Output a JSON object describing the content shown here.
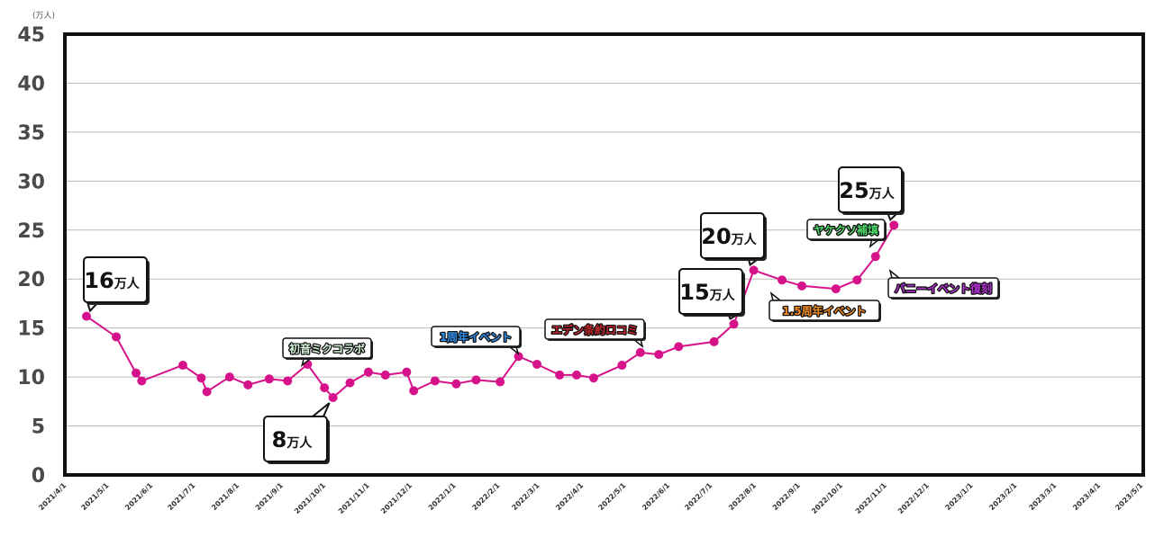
{
  "chart_data": {
    "type": "line",
    "unit_label": "(万人)",
    "ylim": [
      0,
      45
    ],
    "y_ticks": [
      "0",
      "5",
      "10",
      "15",
      "20",
      "25",
      "30",
      "35",
      "40",
      "45"
    ],
    "x_ticks": [
      "2021/4/1",
      "2021/5/1",
      "2021/6/1",
      "2021/7/1",
      "2021/8/1",
      "2021/9/1",
      "2021/10/1",
      "2021/11/1",
      "2021/12/1",
      "2022/1/1",
      "2022/2/1",
      "2022/3/1",
      "2022/4/1",
      "2022/5/1",
      "2022/6/1",
      "2022/7/1",
      "2022/8/1",
      "2022/9/1",
      "2022/10/1",
      "2022/11/1",
      "2022/12/1",
      "2023/1/1",
      "2023/2/1",
      "2023/3/1",
      "2023/4/1",
      "2023/5/1"
    ],
    "grid": true,
    "line_color": "#d6128a",
    "series": [
      {
        "points": [
          [
            "2021-04-15",
            16.2
          ],
          [
            "2021-05-06",
            14.1
          ],
          [
            "2021-05-20",
            10.4
          ],
          [
            "2021-05-24",
            9.6
          ],
          [
            "2021-06-22",
            11.2
          ],
          [
            "2021-07-05",
            9.9
          ],
          [
            "2021-07-09",
            8.5
          ],
          [
            "2021-07-25",
            10.0
          ],
          [
            "2021-08-07",
            9.2
          ],
          [
            "2021-08-22",
            9.8
          ],
          [
            "2021-09-04",
            9.6
          ],
          [
            "2021-09-18",
            11.3
          ],
          [
            "2021-09-30",
            8.9
          ],
          [
            "2021-10-06",
            7.9
          ],
          [
            "2021-10-18",
            9.4
          ],
          [
            "2021-10-31",
            10.5
          ],
          [
            "2021-11-12",
            10.2
          ],
          [
            "2021-11-27",
            10.5
          ],
          [
            "2021-12-02",
            8.6
          ],
          [
            "2021-12-17",
            9.6
          ],
          [
            "2022-01-01",
            9.3
          ],
          [
            "2022-01-15",
            9.7
          ],
          [
            "2022-02-01",
            9.5
          ],
          [
            "2022-02-14",
            12.1
          ],
          [
            "2022-02-27",
            11.3
          ],
          [
            "2022-03-15",
            10.2
          ],
          [
            "2022-03-27",
            10.2
          ],
          [
            "2022-04-08",
            9.9
          ],
          [
            "2022-04-28",
            11.2
          ],
          [
            "2022-05-11",
            12.5
          ],
          [
            "2022-05-24",
            12.3
          ],
          [
            "2022-06-07",
            13.1
          ],
          [
            "2022-07-02",
            13.6
          ],
          [
            "2022-07-16",
            15.4
          ],
          [
            "2022-07-30",
            20.9
          ],
          [
            "2022-08-19",
            19.9
          ],
          [
            "2022-09-02",
            19.3
          ],
          [
            "2022-09-26",
            19.0
          ],
          [
            "2022-10-11",
            19.9
          ],
          [
            "2022-10-24",
            22.3
          ],
          [
            "2022-11-06",
            25.5
          ]
        ]
      }
    ],
    "annotations": [
      {
        "text": "16",
        "suffix": "万人",
        "date": "2021-04-15",
        "kind": "big"
      },
      {
        "text": "8",
        "suffix": "万人",
        "date": "2021-10-06",
        "kind": "big",
        "text_color": "#e0201b"
      },
      {
        "text": "15",
        "suffix": "万人",
        "date": "2022-07-16",
        "kind": "big"
      },
      {
        "text": "20",
        "suffix": "万人",
        "date": "2022-07-30",
        "kind": "big"
      },
      {
        "text": "25",
        "suffix": "万人",
        "date": "2022-11-06",
        "kind": "big"
      },
      {
        "text": "初音ミクコラボ",
        "date": "2021-09-18",
        "kind": "note",
        "text_color": "#d6f4d9"
      },
      {
        "text": "1周年イベント",
        "date": "2022-02-14",
        "kind": "note",
        "text_color": "#2f8fe8"
      },
      {
        "text": "エデン条約ロコミ",
        "date": "2022-05-11",
        "kind": "note",
        "text_color": "#c4282c"
      },
      {
        "text": "1.5周年イベント",
        "date": "2022-07-30",
        "kind": "note",
        "text_color": "#f08a22"
      },
      {
        "text": "ヤケクソ補填",
        "date": "2022-10-24",
        "kind": "note",
        "text_color": "#4bd868"
      },
      {
        "text": "バニーイベント復刻",
        "date": "2022-10-11",
        "kind": "note",
        "text_color": "#b52fd6"
      }
    ]
  }
}
